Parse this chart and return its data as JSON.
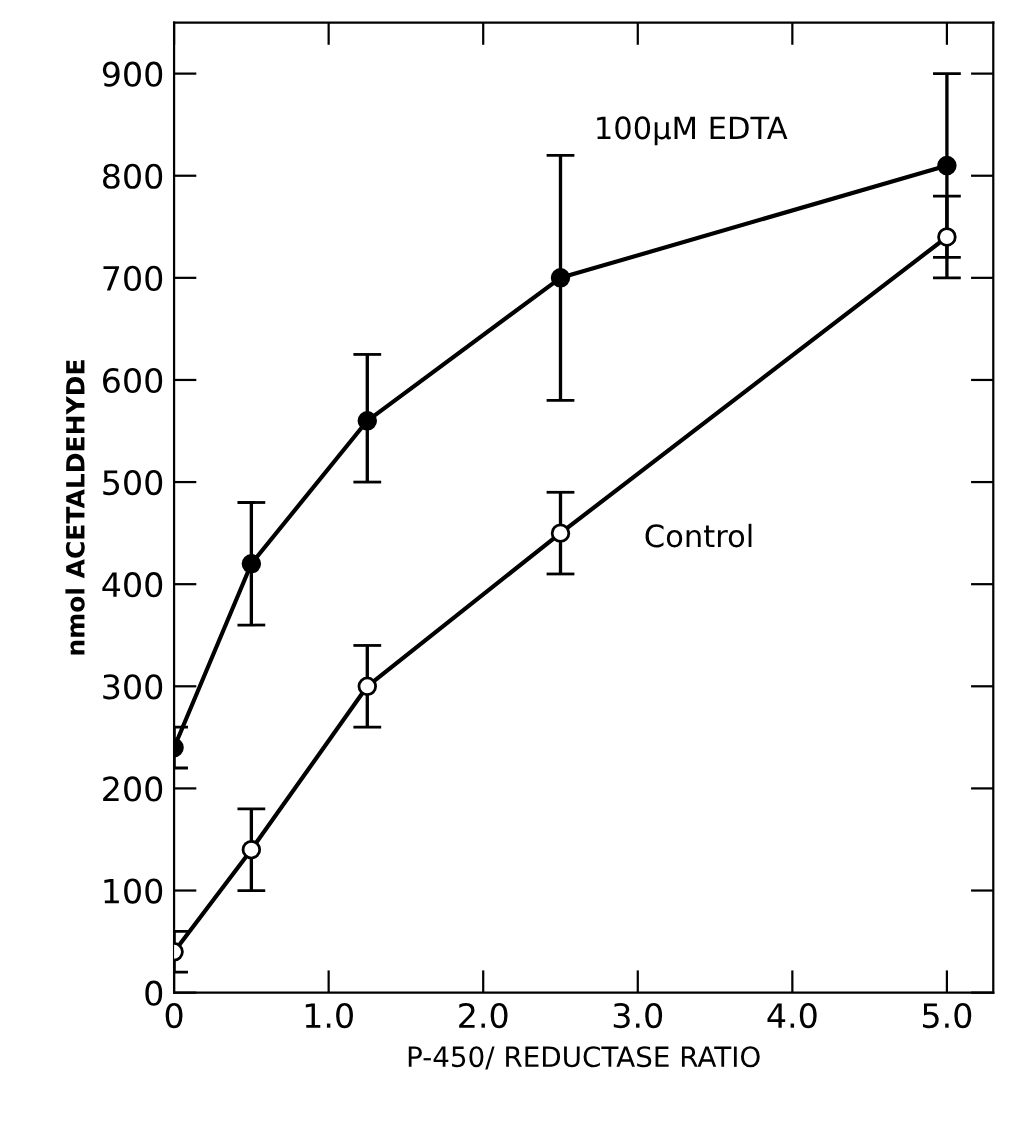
{
  "chart_data": {
    "type": "line",
    "xlabel": "P-450/ REDUCTASE RATIO",
    "ylabel": "nmol ACETALDEHYDE",
    "xlim": [
      0,
      5.3
    ],
    "ylim": [
      0,
      950
    ],
    "xticks": [
      0,
      {
        "value": 1,
        "label": "1.0"
      },
      {
        "value": 2,
        "label": "2.0"
      },
      {
        "value": 3,
        "label": "3.0"
      },
      {
        "value": 4,
        "label": "4.0"
      },
      {
        "value": 5,
        "label": "5.0"
      }
    ],
    "yticks": [
      0,
      100,
      200,
      300,
      400,
      500,
      600,
      700,
      800,
      900
    ],
    "grid": false,
    "legend": false,
    "line_style": "solid",
    "series": [
      {
        "name": "100μM EDTA",
        "color": "#000000",
        "marker": "circle",
        "x": [
          0,
          0.5,
          1.25,
          2.5,
          5.0
        ],
        "values": [
          240,
          420,
          560,
          700,
          810
        ],
        "errors": [
          20,
          60,
          [
            500,
            625
          ],
          [
            580,
            820
          ],
          [
            720,
            900
          ]
        ]
      },
      {
        "name": "Control",
        "color": "#000000",
        "marker": "circle",
        "x": [
          0,
          0.5,
          1.25,
          2.5,
          5.0
        ],
        "values": [
          40,
          140,
          300,
          450,
          740
        ],
        "errors": [
          20,
          40,
          40,
          40,
          40
        ]
      }
    ]
  }
}
